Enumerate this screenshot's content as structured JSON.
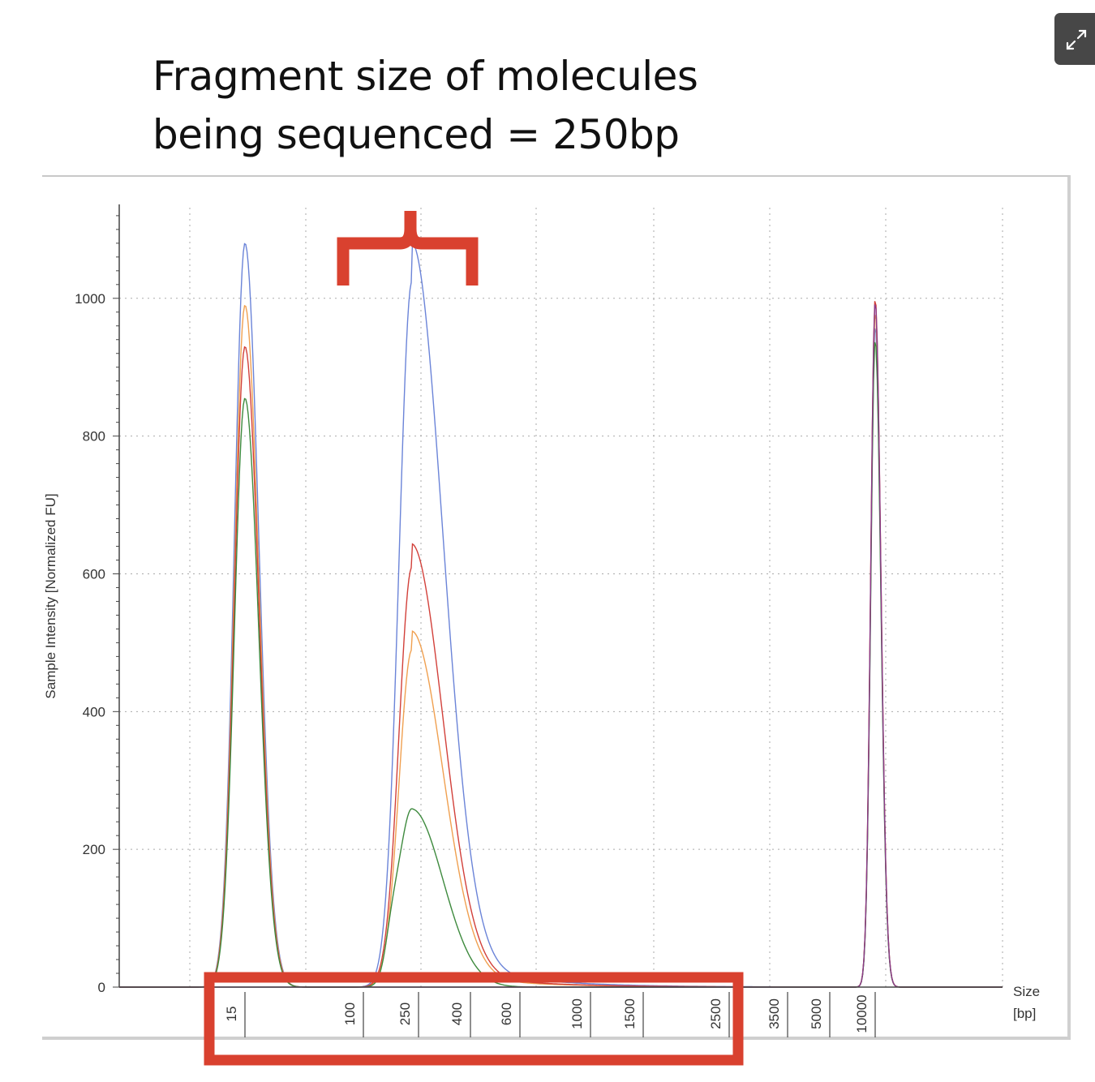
{
  "slide": {
    "title_line1": "Fragment size of molecules",
    "title_line2": "being sequenced = 250bp"
  },
  "icons": {
    "expand": "expand-arrows-icon"
  },
  "colors": {
    "series_blue": "#6b84d8",
    "series_red": "#d2403a",
    "series_orange": "#f0a050",
    "series_green": "#3e8a3e",
    "series_purple": "#8a3a8a",
    "highlight": "#d9412f"
  },
  "chart_data": {
    "type": "line",
    "title": "",
    "ylabel": "Sample Intensity [Normalized FU]",
    "xlabel": "Size [bp]",
    "xlabel_line1": "Size",
    "xlabel_line2": "[bp]",
    "ylim": [
      0,
      1100
    ],
    "yticks": [
      0,
      200,
      400,
      600,
      800,
      1000
    ],
    "x_scale": "ladder (non-linear)",
    "x_tick_labels": [
      "15",
      "100",
      "250",
      "400",
      "600",
      "1000",
      "1500",
      "2500",
      "3500",
      "5000",
      "10000"
    ],
    "grid": true,
    "legend": "none",
    "annotations": [
      "bracket above 250 bp peak",
      "box around x-axis labels 15–2500"
    ],
    "series": [
      {
        "color": "blue",
        "peaks": [
          {
            "x": 15,
            "y": 1080
          },
          {
            "x": 250,
            "y": 1025
          },
          {
            "x": 10000,
            "y": 960
          }
        ]
      },
      {
        "color": "orange",
        "peaks": [
          {
            "x": 15,
            "y": 990
          },
          {
            "x": 250,
            "y": 490
          },
          {
            "x": 10000,
            "y": 980
          }
        ]
      },
      {
        "color": "red",
        "peaks": [
          {
            "x": 15,
            "y": 930
          },
          {
            "x": 250,
            "y": 610
          },
          {
            "x": 10000,
            "y": 1000
          }
        ]
      },
      {
        "color": "green",
        "peaks": [
          {
            "x": 15,
            "y": 855
          },
          {
            "x": 100,
            "y": 45
          },
          {
            "x": 250,
            "y": 258
          },
          {
            "x": 10000,
            "y": 940
          }
        ]
      },
      {
        "color": "purple",
        "peaks": [
          {
            "x": 10000,
            "y": 995
          }
        ]
      }
    ]
  }
}
